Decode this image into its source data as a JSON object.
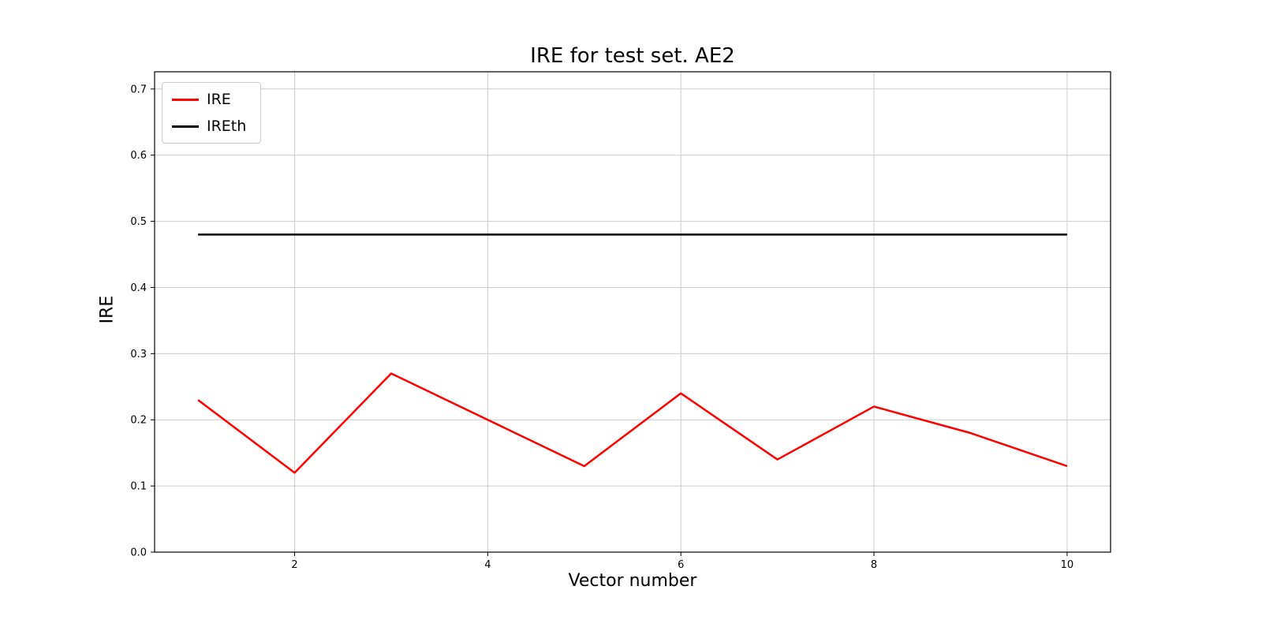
{
  "chart_data": {
    "type": "line",
    "title": "IRE for test set. AE2",
    "xlabel": "Vector number",
    "ylabel": "IRE",
    "x": [
      1,
      2,
      3,
      4,
      5,
      6,
      7,
      8,
      9,
      10
    ],
    "series": [
      {
        "name": "IRE",
        "color": "#ff0000",
        "values": [
          0.23,
          0.12,
          0.27,
          0.2,
          0.13,
          0.24,
          0.14,
          0.22,
          0.18,
          0.13
        ]
      },
      {
        "name": "IREth",
        "color": "#000000",
        "values": [
          0.48,
          0.48,
          0.48,
          0.48,
          0.48,
          0.48,
          0.48,
          0.48,
          0.48,
          0.48
        ]
      }
    ],
    "xticks": [
      2,
      4,
      6,
      8,
      10
    ],
    "yticks": [
      0.0,
      0.1,
      0.2,
      0.3,
      0.4,
      0.5,
      0.6,
      0.7
    ],
    "xlim": [
      0.55,
      10.45
    ],
    "ylim": [
      0.0,
      0.726
    ],
    "grid": true,
    "legend_position": "upper left",
    "grid_color": "#cccccc",
    "axis_color": "#000000"
  }
}
